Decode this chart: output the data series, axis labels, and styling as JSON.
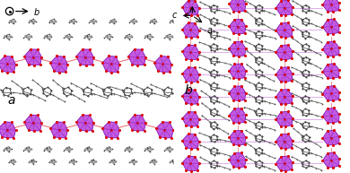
{
  "figsize": [
    3.9,
    1.93
  ],
  "dpi": 100,
  "purple_face": "#BB44DD",
  "purple_edge": "#7700AA",
  "purple_line": "#AA33CC",
  "red": "#DD0000",
  "dark_gray": "#222222",
  "mid_gray": "#555555",
  "light_gray": "#888888",
  "white": "#FFFFFF",
  "left_label": "a",
  "right_label": "b",
  "left_axis_arrow": "b",
  "right_axis_b": "b",
  "right_axis_c": "c",
  "right_axis_a": "a",
  "bg": "#FFFFFF"
}
